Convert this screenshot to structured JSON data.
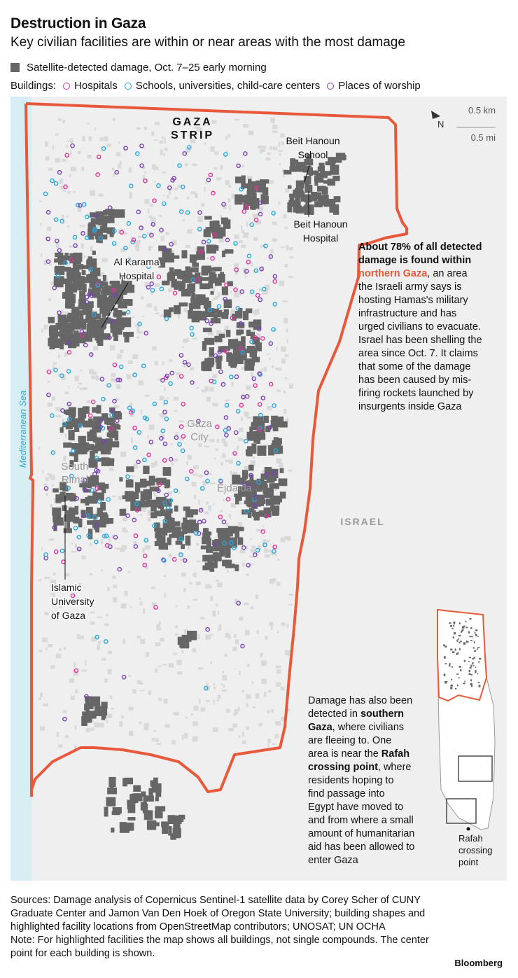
{
  "header": {
    "title": "Destruction in Gaza",
    "subtitle": "Key civilian facilities are within or near areas with the most damage"
  },
  "legend": {
    "damage_label": "Satellite-detected damage, Oct. 7–25 early morning",
    "buildings_label": "Buildings:",
    "hospitals_label": "Hospitals",
    "schools_label": "Schools, universities, child-care centers",
    "worship_label": "Places of worship"
  },
  "colors": {
    "damage": "#666666",
    "hospital": "#e0339a",
    "school": "#2aa7dd",
    "worship": "#7b3fb8",
    "border": "#e8593c",
    "sea": "#d6eef3",
    "land": "#efefef"
  },
  "map": {
    "strip_label_1": "GAZA",
    "strip_label_2": "STRIP",
    "sea_label": "Mediterranean Sea",
    "israel_label": "ISRAEL",
    "north_label": "N",
    "scale_km": "0.5 km",
    "scale_mi": "0.5 mi",
    "places": {
      "beit_hanoun_school_1": "Beit Hanoun",
      "beit_hanoun_school_2": "School",
      "beit_hanoun_hospital_1": "Beit Hanoun",
      "beit_hanoun_hospital_2": "Hospital",
      "al_karama_1": "Al Karama",
      "al_karama_2": "Hospital",
      "gaza_city_1": "Gaza",
      "gaza_city_2": "City",
      "south_rimal_1": "South",
      "south_rimal_2": "Rimal",
      "ejdaida": "Ejdaida",
      "islamic_univ_1": "Islamic",
      "islamic_univ_2": "University",
      "islamic_univ_3": "of Gaza"
    },
    "north_note": {
      "line1": "About 78% of all detected",
      "line2": "damage is found within",
      "line3_highlight": "northern Gaza",
      "line3_rest": ", an area",
      "line4": "the Israeli army says is",
      "line5": "hosting Hamas's military",
      "line6": "infrastructure and has",
      "line7": "urged civilians to evacuate.",
      "line8": "Israel has been shelling the",
      "line9": "area since Oct. 7. It claims",
      "line10": "that some of the damage",
      "line11": "has been caused by mis-",
      "line12": "firing rockets launched by",
      "line13": "insurgents inside Gaza"
    },
    "south_note": {
      "line1": "Damage has also been",
      "line2a": "detected in ",
      "line2b": "southern",
      "line3a": "Gaza",
      "line3b": ", where civilians",
      "line4": "are fleeing to. One",
      "line5a": "area is near the ",
      "line5b": "Rafah",
      "line6a": "crossing point",
      "line6b": ", where",
      "line7": "residents hoping to",
      "line8": "find passage into",
      "line9": "Egypt have moved to",
      "line10": "and from where a small",
      "line11": "amount of humanitarian",
      "line12": "aid has been allowed to",
      "line13": "enter Gaza"
    },
    "inset": {
      "rafah_1": "Rafah",
      "rafah_2": "crossing",
      "rafah_3": "point"
    }
  },
  "footer": {
    "sources": "Sources: Damage analysis of Copernicus Sentinel-1 satellite data by Corey Scher of CUNY Graduate Center and Jamon Van Den Hoek of Oregon State University; building shapes and highlighted facility locations from OpenStreetMap contributors; UNOSAT; UN OCHA",
    "note": "Note: For highlighted facilities the map shows all buildings, not single compounds. The center point for each building is shown.",
    "brand": "Bloomberg"
  }
}
